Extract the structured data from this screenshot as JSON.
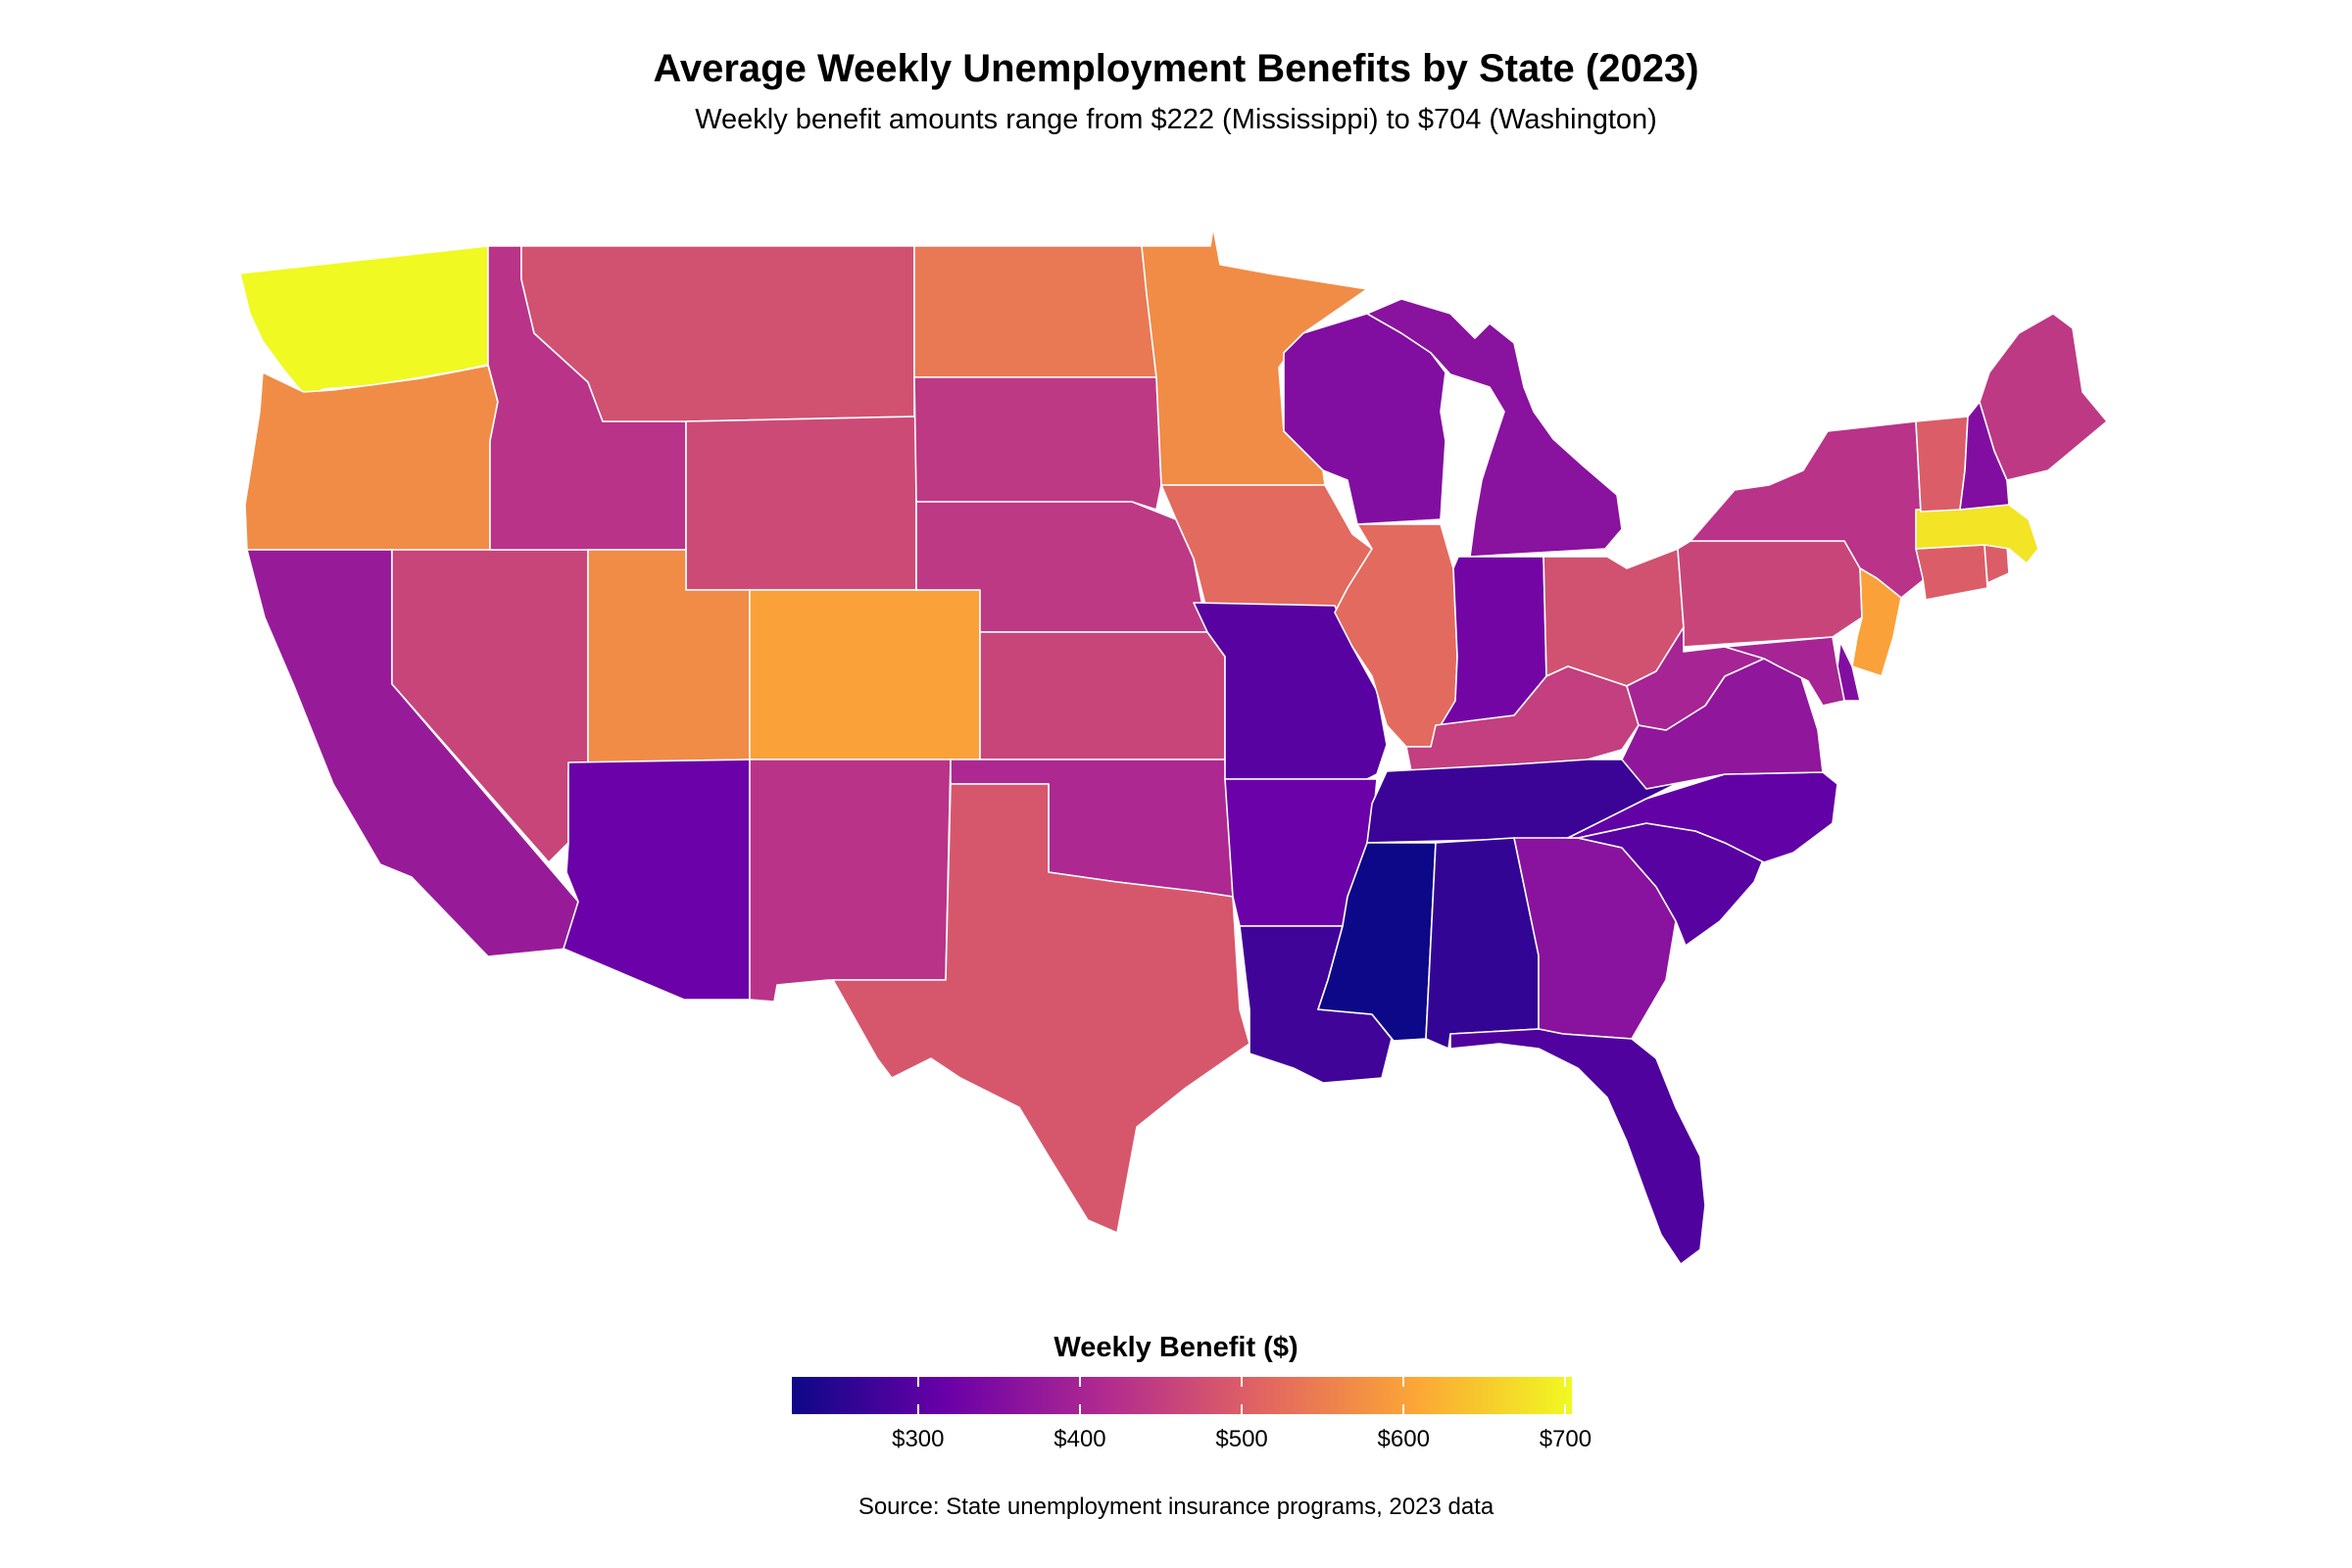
{
  "title": "Average Weekly Unemployment Benefits by State (2023)",
  "subtitle": "Weekly benefit amounts range from $222 (Mississippi) to $704 (Washington)",
  "legend": {
    "title": "Weekly Benefit ($)",
    "min": 222,
    "max": 704,
    "ticks": [
      {
        "value": 300,
        "label": "$300"
      },
      {
        "value": 400,
        "label": "$400"
      },
      {
        "value": 500,
        "label": "$500"
      },
      {
        "value": 600,
        "label": "$600"
      },
      {
        "value": 700,
        "label": "$700"
      }
    ],
    "palette": [
      "#0d0887",
      "#6a00a8",
      "#b12a90",
      "#e16462",
      "#fca636",
      "#f0f921"
    ]
  },
  "source": "Source: State unemployment insurance programs, 2023 data",
  "chart_data": {
    "type": "choropleth",
    "value_range": [
      222,
      704
    ],
    "values": {
      "Washington": 704,
      "Oregon": 570,
      "California": 380,
      "Nevada": 460,
      "Idaho": 430,
      "Montana": 480,
      "Wyoming": 470,
      "Utah": 570,
      "Colorado": 600,
      "Arizona": 320,
      "New Mexico": 430,
      "North Dakota": 540,
      "South Dakota": 440,
      "Nebraska": 440,
      "Kansas": 460,
      "Oklahoma": 410,
      "Texas": 490,
      "Minnesota": 570,
      "Iowa": 520,
      "Missouri": 300,
      "Arkansas": 320,
      "Louisiana": 275,
      "Wisconsin": 350,
      "Illinois": 520,
      "Michigan": 360,
      "Indiana": 330,
      "Ohio": 480,
      "Kentucky": 450,
      "Tennessee": 270,
      "Mississippi": 222,
      "Alabama": 260,
      "Georgia": 360,
      "Florida": 290,
      "South Carolina": 300,
      "North Carolina": 310,
      "Virginia": 370,
      "West Virginia": 400,
      "Pennsylvania": 460,
      "New York": 430,
      "New Jersey": 600,
      "Delaware": 350,
      "Maryland": 400,
      "Connecticut": 500,
      "Rhode Island": 500,
      "Massachusetts": 680,
      "Vermont": 500,
      "New Hampshire": 350,
      "Maine": 440
    }
  }
}
